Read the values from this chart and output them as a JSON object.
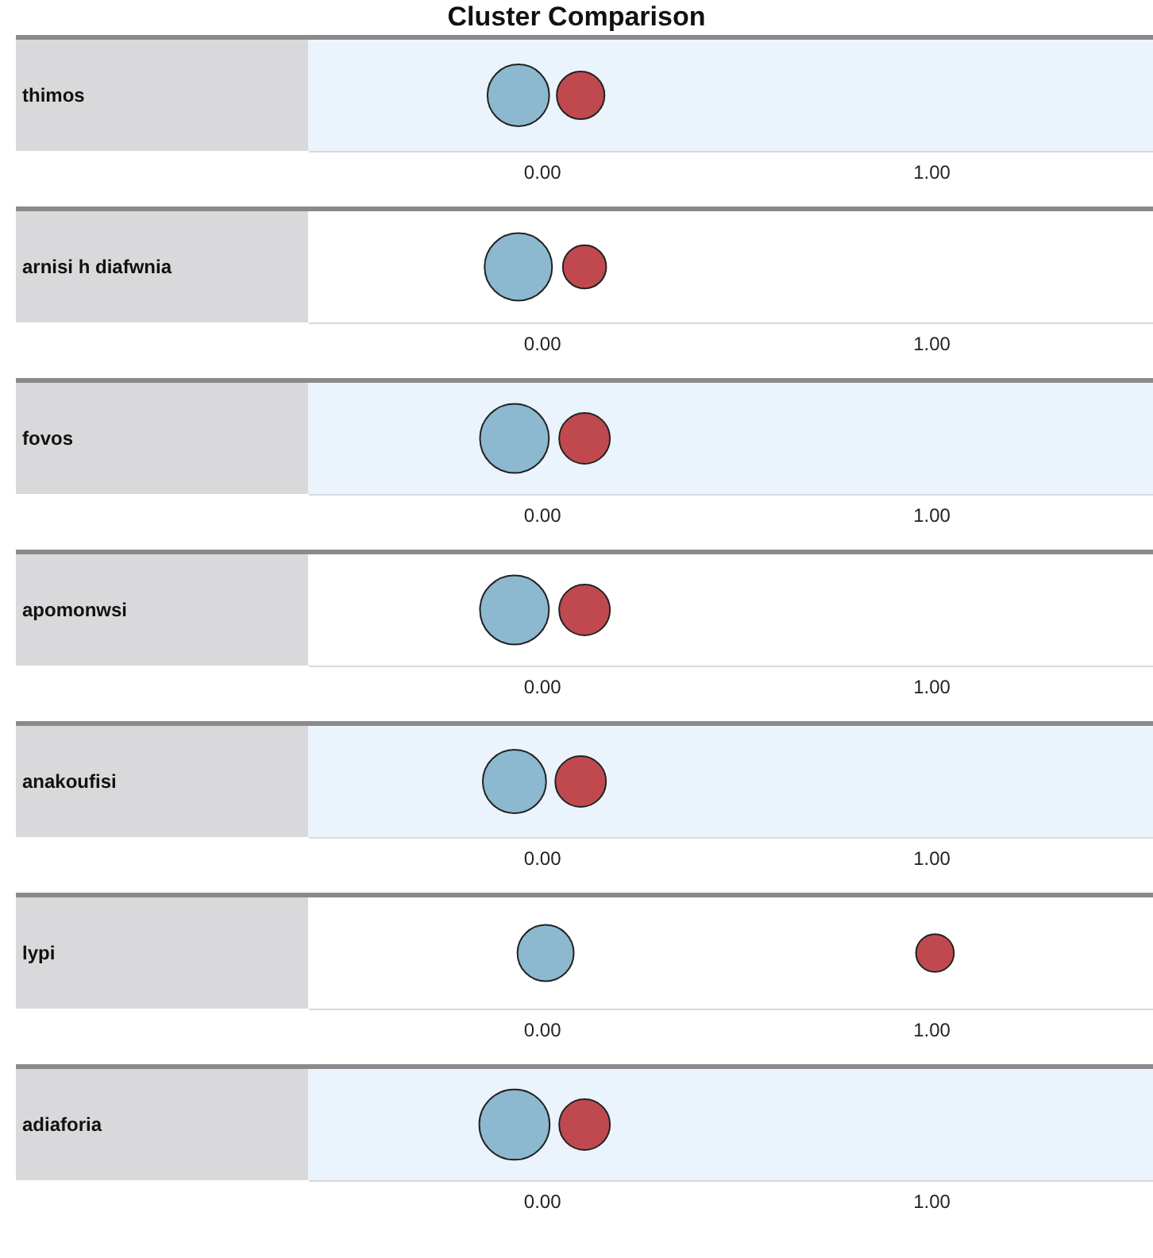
{
  "chart_data": {
    "type": "bubble",
    "title": "Cluster Comparison",
    "orientation": "horizontal",
    "categories": [
      "thimos",
      "arnisi h diafwnia",
      "fovos",
      "apomonwsi",
      "anakoufisi",
      "lypi",
      "adiaforia"
    ],
    "xlim": [
      -0.6,
      1.57
    ],
    "xticks": [
      {
        "value": 0,
        "label": "0.00"
      },
      {
        "value": 1,
        "label": "1.00"
      }
    ],
    "series": [
      {
        "color": "#8cb8d0",
        "values": [
          -0.06,
          -0.06,
          -0.07,
          -0.07,
          -0.07,
          0.01,
          -0.07
        ],
        "sizes": [
          0.77,
          0.92,
          0.96,
          0.96,
          0.81,
          0.64,
          1
        ]
      },
      {
        "color": "#c0494f",
        "values": [
          0.1,
          0.11,
          0.11,
          0.11,
          0.1,
          1.01,
          0.11
        ],
        "sizes": [
          0.46,
          0.38,
          0.52,
          0.52,
          0.52,
          0.29,
          0.52
        ]
      }
    ]
  }
}
